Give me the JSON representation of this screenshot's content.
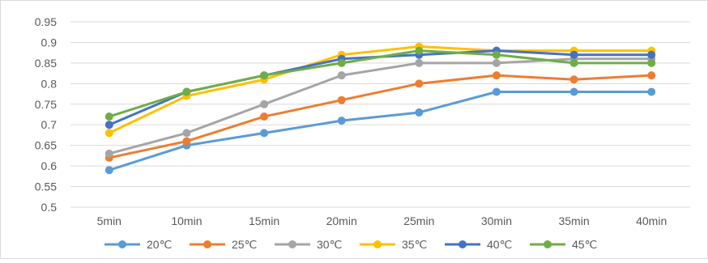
{
  "chart_data": {
    "type": "line",
    "title": "",
    "xlabel": "",
    "ylabel": "",
    "categories": [
      "5min",
      "10min",
      "15min",
      "20min",
      "25min",
      "30min",
      "35min",
      "40min"
    ],
    "ylim": [
      0.5,
      0.95
    ],
    "yticks": [
      "0.95",
      "0.9",
      "0.85",
      "0.8",
      "0.75",
      "0.7",
      "0.65",
      "0.6",
      "0.55",
      "0.5"
    ],
    "grid": true,
    "legend_position": "bottom",
    "series": [
      {
        "name": "20℃",
        "color": "#5b9bd5",
        "values": [
          0.59,
          0.65,
          0.68,
          0.71,
          0.73,
          0.78,
          0.78,
          0.78
        ]
      },
      {
        "name": "25℃",
        "color": "#ed7d31",
        "values": [
          0.62,
          0.66,
          0.72,
          0.76,
          0.8,
          0.82,
          0.81,
          0.82
        ]
      },
      {
        "name": "30℃",
        "color": "#a5a5a5",
        "values": [
          0.63,
          0.68,
          0.75,
          0.82,
          0.85,
          0.85,
          0.86,
          0.86
        ]
      },
      {
        "name": "35℃",
        "color": "#ffc000",
        "values": [
          0.68,
          0.77,
          0.81,
          0.87,
          0.89,
          0.88,
          0.88,
          0.88
        ]
      },
      {
        "name": "40℃",
        "color": "#4472c4",
        "values": [
          0.7,
          0.78,
          0.82,
          0.86,
          0.87,
          0.88,
          0.87,
          0.87
        ]
      },
      {
        "name": "45℃",
        "color": "#70ad47",
        "values": [
          0.72,
          0.78,
          0.82,
          0.85,
          0.88,
          0.87,
          0.85,
          0.85
        ]
      }
    ]
  }
}
